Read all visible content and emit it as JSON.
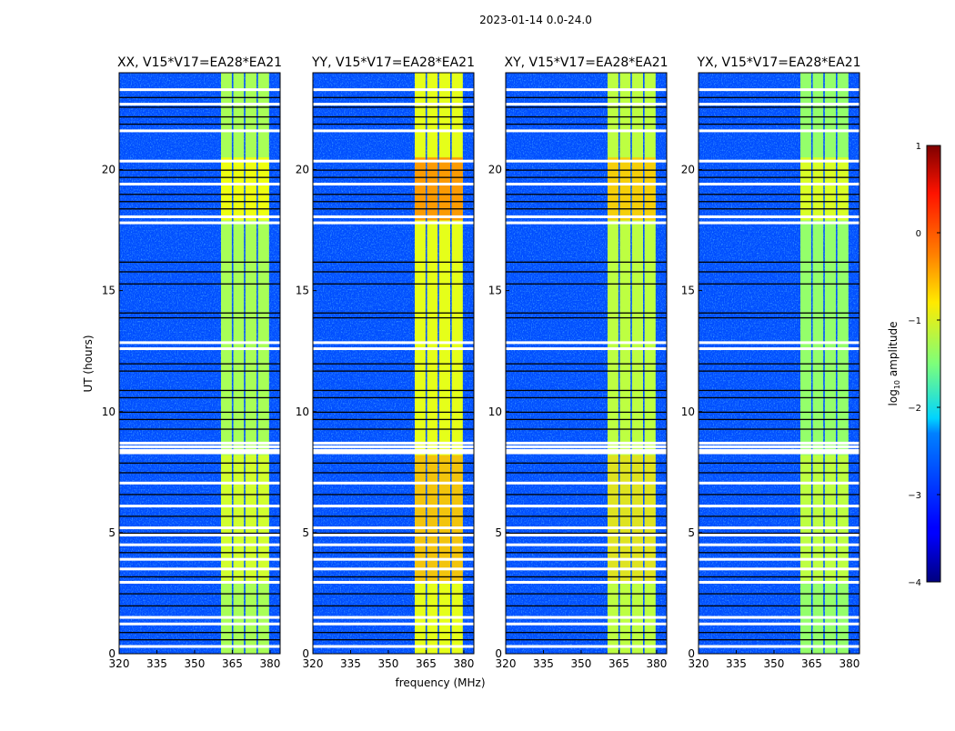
{
  "chart_data": {
    "type": "heatmap",
    "title": "2023-01-14 0.0-24.0",
    "xlabel": "frequency (MHz)",
    "ylabel": "UT (hours)",
    "xlim": [
      320,
      384
    ],
    "ylim": [
      0,
      24
    ],
    "xticks": [
      320,
      335,
      350,
      365,
      380
    ],
    "yticks": [
      0,
      5,
      10,
      15,
      20
    ],
    "colorbar": {
      "label_main": "log",
      "label_sub": "10",
      "label_rest": " amplitude",
      "range": [
        -4,
        1
      ],
      "ticks": [
        1,
        0,
        -1,
        -2,
        -3,
        -4
      ],
      "colormap": "jet"
    },
    "background_level": -3.0,
    "rfi_channels": [
      [
        360.5,
        364.8
      ],
      [
        365.4,
        369.6
      ],
      [
        370.2,
        374.6
      ],
      [
        375.2,
        379.6
      ]
    ],
    "flagged_hours": [
      23.3,
      22.7,
      21.6,
      20.35,
      19.4,
      18.05,
      17.8,
      12.85,
      12.6,
      8.7,
      8.55,
      8.4,
      8.3,
      7.05,
      6.1,
      5.2,
      4.9,
      4.5,
      3.9,
      3.5,
      2.95,
      1.5,
      1.23,
      0.3
    ],
    "dark_hours": [
      23.0,
      22.6,
      22.2,
      21.9,
      20.0,
      19.7,
      19.0,
      18.7,
      18.4,
      16.2,
      15.8,
      15.3,
      14.1,
      13.9,
      12.0,
      11.7,
      10.9,
      10.6,
      10.0,
      9.7,
      9.3,
      7.9,
      7.5,
      6.6,
      5.7,
      5.0,
      4.2,
      3.2,
      2.5,
      2.0,
      0.9,
      0.6
    ],
    "panels": [
      {
        "title": "XX, V15*V17=EA28*EA21",
        "rfi_level": -1.3,
        "rfi_peak_level": -0.9
      },
      {
        "title": "YY, V15*V17=EA28*EA21",
        "rfi_level": -1.0,
        "rfi_peak_level": -0.3
      },
      {
        "title": "XY, V15*V17=EA28*EA21",
        "rfi_level": -1.2,
        "rfi_peak_level": -0.6
      },
      {
        "title": "YX, V15*V17=EA28*EA21",
        "rfi_level": -1.4,
        "rfi_peak_level": -1.0
      }
    ]
  }
}
